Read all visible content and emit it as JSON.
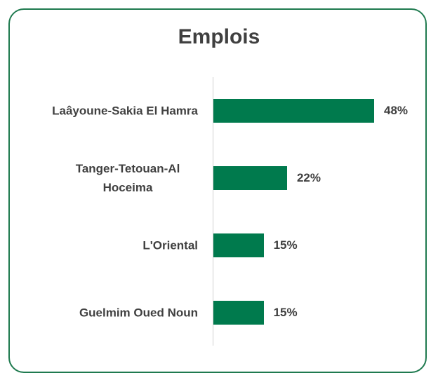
{
  "chart_data": {
    "type": "bar",
    "orientation": "horizontal",
    "title": "Emplois",
    "categories": [
      "Laâyoune-Sakia El Hamra",
      "Tanger-Tetouan-Al Hoceima",
      "L'Oriental",
      "Guelmim Oued Noun"
    ],
    "values": [
      48,
      22,
      15,
      15
    ],
    "value_labels": [
      "48%",
      "22%",
      "15%",
      "15%"
    ],
    "color": "#007a4d"
  }
}
